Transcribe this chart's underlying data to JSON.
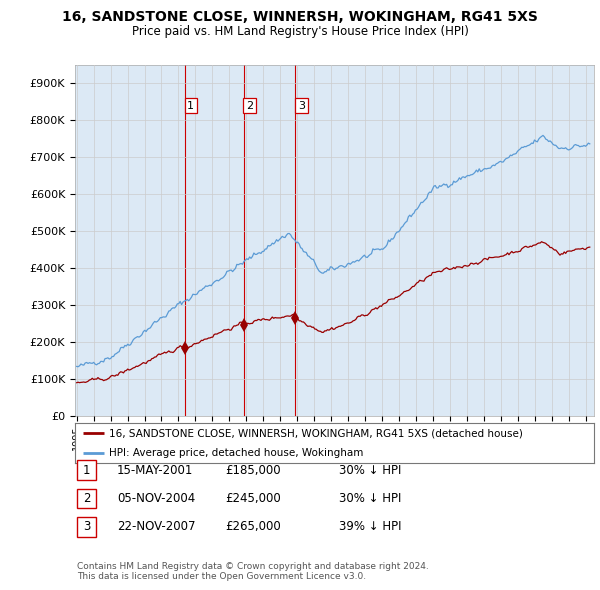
{
  "title": "16, SANDSTONE CLOSE, WINNERSH, WOKINGHAM, RG41 5XS",
  "subtitle": "Price paid vs. HM Land Registry's House Price Index (HPI)",
  "ylabel_ticks": [
    "£0",
    "£100K",
    "£200K",
    "£300K",
    "£400K",
    "£500K",
    "£600K",
    "£700K",
    "£800K",
    "£900K"
  ],
  "ytick_values": [
    0,
    100000,
    200000,
    300000,
    400000,
    500000,
    600000,
    700000,
    800000,
    900000
  ],
  "ylim": [
    0,
    950000
  ],
  "xlim_start": 1994.9,
  "xlim_end": 2025.5,
  "sales": [
    {
      "date": 2001.37,
      "price": 185000,
      "label": "1"
    },
    {
      "date": 2004.84,
      "price": 245000,
      "label": "2"
    },
    {
      "date": 2007.9,
      "price": 265000,
      "label": "3"
    }
  ],
  "legend_entries": [
    "16, SANDSTONE CLOSE, WINNERSH, WOKINGHAM, RG41 5XS (detached house)",
    "HPI: Average price, detached house, Wokingham"
  ],
  "table_rows": [
    {
      "num": "1",
      "date": "15-MAY-2001",
      "price": "£185,000",
      "hpi": "30% ↓ HPI"
    },
    {
      "num": "2",
      "date": "05-NOV-2004",
      "price": "£245,000",
      "hpi": "30% ↓ HPI"
    },
    {
      "num": "3",
      "date": "22-NOV-2007",
      "price": "£265,000",
      "hpi": "39% ↓ HPI"
    }
  ],
  "footer": [
    "Contains HM Land Registry data © Crown copyright and database right 2024.",
    "This data is licensed under the Open Government Licence v3.0."
  ],
  "hpi_color": "#5b9bd5",
  "sale_color": "#990000",
  "vline_color": "#cc0000",
  "grid_color": "#cccccc",
  "plot_bg_color": "#dce9f5",
  "background_color": "#ffffff"
}
